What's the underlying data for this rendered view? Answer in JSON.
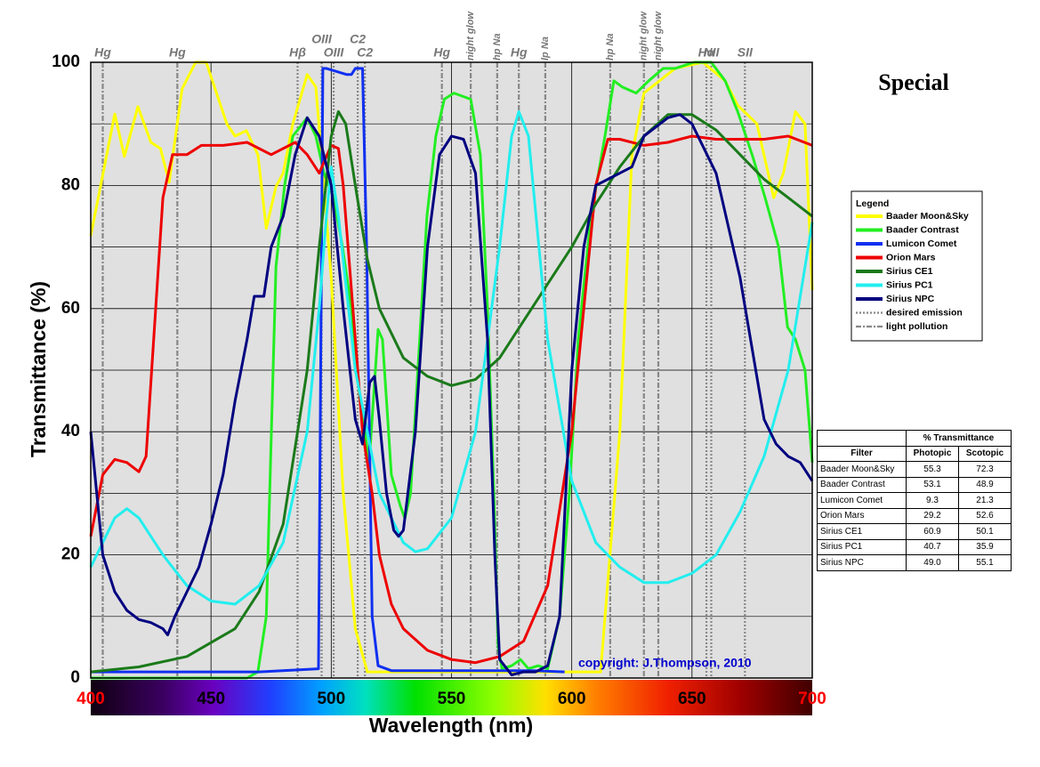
{
  "chart_data": {
    "type": "line",
    "title": "Special",
    "xlabel": "Wavelength (nm)",
    "ylabel": "Transmittance (%)",
    "annotation": "copyright: J.Thompson, 2010",
    "legend_title": "Legend",
    "xlim": [
      400,
      700
    ],
    "xticks": [
      400,
      450,
      500,
      550,
      600,
      650,
      700
    ],
    "ylim": [
      0,
      100
    ],
    "yticks": [
      0,
      20,
      40,
      60,
      80,
      100
    ],
    "y_minor_ticks": [
      10,
      30,
      50,
      70,
      90
    ],
    "grid": true,
    "series": [
      {
        "name": "Baader Moon&Sky",
        "color": "#ffff00",
        "x": [
          400,
          410,
          414,
          419.6,
          425,
          429,
          432.6,
          438,
          443.6,
          448,
          456.6,
          460,
          464.7,
          469.5,
          473,
          477,
          480,
          484,
          490,
          493.6,
          497,
          500,
          505,
          510,
          515,
          560,
          612,
          620,
          625,
          630,
          643,
          654.5,
          663.8,
          669,
          677,
          684,
          688,
          693,
          697,
          700
        ],
        "values": [
          71.8,
          91.6,
          84.7,
          92.8,
          87,
          86,
          80.5,
          95.7,
          100,
          100,
          90,
          88,
          88.9,
          85,
          73,
          79.8,
          82,
          90,
          98,
          96,
          79.8,
          65,
          30,
          8,
          1,
          1,
          1,
          40,
          85,
          95,
          99,
          100,
          97,
          93,
          90,
          78,
          82,
          92,
          90,
          63
        ]
      },
      {
        "name": "Baader Contrast",
        "color": "#22ee22",
        "x": [
          400,
          465,
          469.5,
          473,
          477,
          480.6,
          484,
          490,
          493.6,
          497,
          501,
          504.7,
          508.4,
          512,
          515.8,
          519.5,
          521.3,
          523,
          525,
          528.7,
          530.6,
          533,
          536,
          539.8,
          543.5,
          547,
          551,
          558,
          562,
          565,
          567.6,
          569.4,
          571,
          575,
          578.7,
          582,
          586,
          590,
          595,
          599,
          602.7,
          608,
          613.8,
          617.5,
          621,
          626.8,
          632,
          638,
          643,
          650.8,
          658,
          663.8,
          669,
          675,
          680.4,
          686,
          689.7,
          693,
          697,
          700
        ],
        "values": [
          0,
          0,
          1,
          10,
          66.8,
          80,
          88,
          91,
          88,
          82,
          78,
          70,
          60,
          45,
          35,
          56.6,
          55,
          45,
          33,
          28,
          25.9,
          30,
          50,
          75,
          88,
          94,
          95,
          94,
          85,
          60,
          30,
          5,
          1.5,
          2,
          3,
          1.5,
          2,
          1.5,
          10,
          30,
          55,
          75,
          88,
          97,
          96,
          95,
          97,
          99,
          99,
          100,
          100,
          97,
          92,
          85,
          78,
          70,
          57,
          55,
          50,
          35
        ]
      },
      {
        "name": "Lumicon Comet",
        "color": "#1030f0",
        "x": [
          400,
          470,
          494.7,
          496.5,
          498,
          506.5,
          508.4,
          510,
          513,
          514.7,
          517,
          519.5,
          525,
          560,
          584,
          597
        ],
        "values": [
          1,
          1,
          1.5,
          99,
          99,
          98,
          98,
          99,
          99,
          70,
          10,
          2,
          1.2,
          1.2,
          1.2,
          1
        ]
      },
      {
        "name": "Orion Mars",
        "color": "#ee0000",
        "x": [
          400,
          405,
          410,
          415,
          420,
          423,
          427,
          430,
          434,
          440,
          446,
          455,
          465,
          475,
          485,
          490,
          495,
          500,
          503,
          505,
          510,
          513,
          517,
          520,
          525,
          530,
          540,
          550,
          560,
          570,
          580,
          590,
          600,
          605,
          610,
          615,
          620,
          630,
          640,
          650,
          660,
          670,
          680,
          690,
          700
        ],
        "values": [
          23,
          33,
          35.5,
          35,
          33.5,
          36,
          60,
          78,
          85,
          85,
          86.5,
          86.5,
          87,
          85,
          87,
          85,
          82,
          86.5,
          86,
          80,
          55,
          40,
          30,
          20,
          12,
          8,
          4.5,
          3,
          2.5,
          3.5,
          6,
          15,
          40,
          60,
          80,
          87.5,
          87.5,
          86.5,
          87,
          88,
          87.5,
          87.5,
          87.5,
          88,
          86.5
        ]
      },
      {
        "name": "Sirius CE1",
        "color": "#1a7a1a",
        "x": [
          400,
          420,
          440,
          460,
          470,
          480,
          490,
          495,
          500,
          503,
          506,
          510,
          515,
          520,
          530,
          540,
          550,
          560,
          570,
          580,
          590,
          600,
          610,
          620,
          630,
          640,
          650,
          660,
          670,
          680,
          690,
          700
        ],
        "values": [
          1,
          1.8,
          3.5,
          8,
          14,
          25,
          50,
          70,
          88,
          92,
          90,
          80,
          68,
          60,
          52,
          49,
          47.5,
          48.5,
          52,
          58,
          64,
          70,
          77,
          83,
          88,
          91.5,
          91.5,
          89,
          85,
          81,
          78,
          75
        ]
      },
      {
        "name": "Sirius PC1",
        "color": "#22eeee",
        "x": [
          400,
          405,
          410,
          415,
          420,
          430,
          440,
          450,
          460,
          470,
          480,
          490,
          495,
          498,
          500,
          503,
          510,
          520,
          530,
          535,
          540,
          550,
          560,
          570,
          575,
          578,
          582,
          590,
          600,
          610,
          620,
          630,
          640,
          650,
          660,
          670,
          680,
          690,
          700
        ],
        "values": [
          18,
          22,
          26,
          27.5,
          26,
          20,
          15,
          12.5,
          12,
          15,
          22,
          40,
          60,
          75,
          83,
          75,
          50,
          30,
          22,
          20.5,
          21,
          26,
          40,
          70,
          88,
          92,
          88,
          55,
          32,
          22,
          18,
          15.5,
          15.5,
          17,
          20,
          27,
          36,
          50,
          74
        ]
      },
      {
        "name": "Sirius NPC",
        "color": "#000080",
        "x": [
          400,
          405,
          410,
          415,
          420,
          425,
          430,
          432,
          435,
          440,
          445,
          450,
          455,
          460,
          465,
          468,
          472,
          475,
          480,
          485,
          490,
          495,
          500,
          505,
          510,
          513,
          516,
          518,
          520,
          523,
          526,
          528,
          530,
          535,
          540,
          545,
          550,
          555,
          560,
          565,
          568,
          570,
          575,
          580,
          585,
          590,
          595,
          600,
          605,
          610,
          615,
          620,
          625,
          630,
          640,
          645,
          650,
          660,
          670,
          680,
          685,
          690,
          695,
          700
        ],
        "values": [
          40,
          20,
          14,
          11,
          9.5,
          9,
          8,
          7,
          10,
          14,
          18,
          25,
          33,
          45,
          55,
          62,
          62,
          70,
          75,
          85,
          91,
          88,
          80,
          60,
          42,
          38,
          48,
          49,
          42,
          30,
          24,
          23,
          24,
          40,
          70,
          85,
          88,
          87.5,
          82,
          55,
          20,
          3,
          0.5,
          1,
          1,
          2,
          10,
          50,
          70,
          80,
          81,
          82,
          83,
          88,
          91,
          91.5,
          90,
          82,
          65,
          42,
          38,
          36,
          35,
          32
        ]
      }
    ],
    "emission_legend": [
      "desired emission",
      "light pollution"
    ],
    "emission_lines": [
      {
        "label": "Hg",
        "x": 405,
        "kind": "light pollution"
      },
      {
        "label": "Hg",
        "x": 436,
        "kind": "light pollution"
      },
      {
        "label": "Hβ",
        "x": 486,
        "kind": "desired emission"
      },
      {
        "label": "OIII",
        "x": 496,
        "kind": "desired emission"
      },
      {
        "label": "OIII",
        "x": 501,
        "kind": "desired emission"
      },
      {
        "label": "C2",
        "x": 511,
        "kind": "desired emission"
      },
      {
        "label": "C2",
        "x": 514,
        "kind": "desired emission"
      },
      {
        "label": "Hg",
        "x": 546,
        "kind": "light pollution"
      },
      {
        "label": "night glow",
        "x": 558,
        "kind": "light pollution"
      },
      {
        "label": "hp Na",
        "x": 569,
        "kind": "light pollution"
      },
      {
        "label": "Hg",
        "x": 578,
        "kind": "light pollution"
      },
      {
        "label": "lp Na",
        "x": 589,
        "kind": "light pollution"
      },
      {
        "label": "hp Na",
        "x": 616,
        "kind": "light pollution"
      },
      {
        "label": "night glow",
        "x": 630,
        "kind": "light pollution"
      },
      {
        "label": "night glow",
        "x": 636,
        "kind": "light pollution"
      },
      {
        "label": "Hα",
        "x": 656,
        "kind": "desired emission"
      },
      {
        "label": "NII",
        "x": 658,
        "kind": "desired emission"
      },
      {
        "label": "SII",
        "x": 672,
        "kind": "desired emission"
      }
    ]
  },
  "table": {
    "group_header": "% Transmittance",
    "columns": [
      "Filter",
      "Photopic",
      "Scotopic"
    ],
    "rows": [
      [
        "Baader Moon&Sky",
        "55.3",
        "72.3"
      ],
      [
        "Baader Contrast",
        "53.1",
        "48.9"
      ],
      [
        "Lumicon Comet",
        "9.3",
        "21.3"
      ],
      [
        "Orion Mars",
        "29.2",
        "52.6"
      ],
      [
        "Sirius CE1",
        "60.9",
        "50.1"
      ],
      [
        "Sirius PC1",
        "40.7",
        "35.9"
      ],
      [
        "Sirius NPC",
        "49.0",
        "55.1"
      ]
    ]
  }
}
